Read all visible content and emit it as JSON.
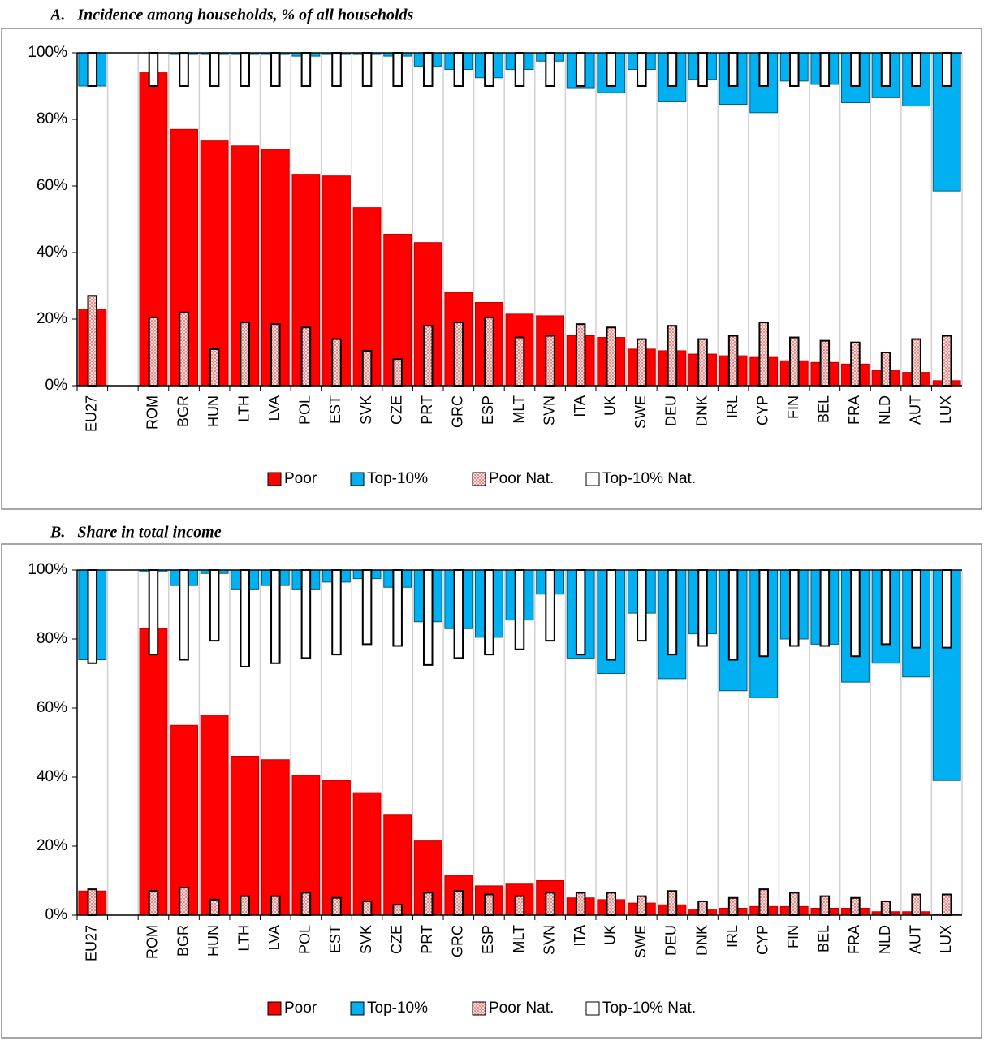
{
  "chart_data": [
    {
      "type": "bar",
      "title": "A.   Incidence among households, % of all households",
      "categories": [
        "EU27",
        null,
        "ROM",
        "BGR",
        "HUN",
        "LTH",
        "LVA",
        "POL",
        "EST",
        "SVK",
        "CZE",
        "PRT",
        "GRC",
        "ESP",
        "MLT",
        "SVN",
        "ITA",
        "UK",
        "SWE",
        "DEU",
        "DNK",
        "IRL",
        "CYP",
        "FIN",
        "BEL",
        "FRA",
        "NLD",
        "AUT",
        "LUX"
      ],
      "series": [
        {
          "name": "Poor",
          "color": "#ff0000",
          "anchor": "bottom",
          "style": "wide",
          "values": [
            23,
            null,
            94,
            77,
            73.5,
            72,
            71,
            63.5,
            63,
            53.5,
            45.5,
            43,
            28,
            25,
            21.5,
            21,
            15,
            14.5,
            11,
            10.5,
            9.5,
            9,
            8.5,
            7.5,
            7,
            6.5,
            4.5,
            4,
            1.5
          ]
        },
        {
          "name": "Top-10%",
          "color": "#00b0f0",
          "anchor": "top",
          "style": "wide",
          "values": [
            90,
            null,
            100,
            99.5,
            99.5,
            99.5,
            99.5,
            99,
            99.5,
            99.5,
            99,
            96,
            95,
            92.5,
            95,
            97.5,
            89.5,
            88,
            95,
            85.5,
            92,
            84.5,
            82,
            91.5,
            90.5,
            85,
            86.5,
            84,
            58.5
          ]
        },
        {
          "name": "Poor Nat.",
          "color": "#f8c8c0",
          "anchor": "bottom",
          "style": "narrow",
          "values": [
            27,
            null,
            20.5,
            22,
            11,
            19,
            18.5,
            17.5,
            14,
            10.5,
            8,
            18,
            19,
            20.5,
            14.5,
            15,
            18.5,
            17.5,
            14,
            18,
            14,
            15,
            19,
            14.5,
            13.5,
            13,
            10,
            14,
            15
          ]
        },
        {
          "name": "Top-10% Nat.",
          "color": "#ffffff",
          "anchor": "top",
          "style": "narrow",
          "values": [
            90,
            null,
            90,
            90,
            90,
            90,
            90,
            90,
            90,
            90,
            90,
            90,
            90,
            90,
            90,
            90,
            90,
            90,
            90,
            90,
            90,
            90,
            90,
            90,
            90,
            90,
            90,
            90,
            90
          ]
        }
      ],
      "ylim": [
        0,
        100
      ],
      "yticks": [
        {
          "value": 0,
          "label": "0%"
        },
        {
          "value": 20,
          "label": "20%"
        },
        {
          "value": 40,
          "label": "40%"
        },
        {
          "value": 60,
          "label": "60%"
        },
        {
          "value": 80,
          "label": "80%"
        },
        {
          "value": 100,
          "label": "100%"
        }
      ],
      "grid": true,
      "legend": "bottom"
    },
    {
      "type": "bar",
      "title": "B.   Share in total income",
      "categories": [
        "EU27",
        null,
        "ROM",
        "BGR",
        "HUN",
        "LTH",
        "LVA",
        "POL",
        "EST",
        "SVK",
        "CZE",
        "PRT",
        "GRC",
        "ESP",
        "MLT",
        "SVN",
        "ITA",
        "UK",
        "SWE",
        "DEU",
        "DNK",
        "IRL",
        "CYP",
        "FIN",
        "BEL",
        "FRA",
        "NLD",
        "AUT",
        "LUX"
      ],
      "series": [
        {
          "name": "Poor",
          "color": "#ff0000",
          "anchor": "bottom",
          "style": "wide",
          "values": [
            7,
            null,
            83,
            55,
            58,
            46,
            45,
            40.5,
            39,
            35.5,
            29,
            21.5,
            11.5,
            8.5,
            9,
            10,
            5,
            4.5,
            3.5,
            3,
            1.5,
            2,
            2.5,
            2.5,
            2,
            2,
            1,
            1,
            0.2
          ]
        },
        {
          "name": "Top-10%",
          "color": "#00b0f0",
          "anchor": "top",
          "style": "wide",
          "values": [
            74,
            null,
            99.5,
            95.5,
            99,
            94.5,
            95.5,
            94.5,
            96.5,
            97.5,
            95,
            85,
            83,
            80.5,
            85.5,
            93,
            74.5,
            70,
            87.5,
            68.5,
            81.5,
            65,
            63,
            80,
            78.5,
            67.5,
            73,
            69,
            39
          ]
        },
        {
          "name": "Poor Nat.",
          "color": "#f8c8c0",
          "anchor": "bottom",
          "style": "narrow",
          "values": [
            7.5,
            null,
            7,
            8,
            4.5,
            5.5,
            5.5,
            6.5,
            5,
            4,
            3,
            6.5,
            7,
            6,
            5.5,
            6.5,
            6.5,
            6.5,
            5.5,
            7,
            4,
            5,
            7.5,
            6.5,
            5.5,
            5,
            4,
            6,
            6
          ]
        },
        {
          "name": "Top-10% Nat.",
          "color": "#ffffff",
          "anchor": "top",
          "style": "narrow",
          "values": [
            73,
            null,
            75.5,
            74,
            79.5,
            72,
            73,
            74.5,
            75.5,
            78.5,
            78,
            72.5,
            74.5,
            75.5,
            77,
            79.5,
            75.5,
            74,
            79.5,
            75.5,
            78,
            74,
            75,
            78,
            78,
            75,
            78.5,
            77.5,
            77.5
          ]
        }
      ],
      "ylim": [
        0,
        100
      ],
      "yticks": [
        {
          "value": 0,
          "label": "0%"
        },
        {
          "value": 20,
          "label": "20%"
        },
        {
          "value": 40,
          "label": "40%"
        },
        {
          "value": 60,
          "label": "60%"
        },
        {
          "value": 80,
          "label": "80%"
        },
        {
          "value": 100,
          "label": "100%"
        }
      ],
      "grid": true,
      "legend": "bottom"
    }
  ]
}
